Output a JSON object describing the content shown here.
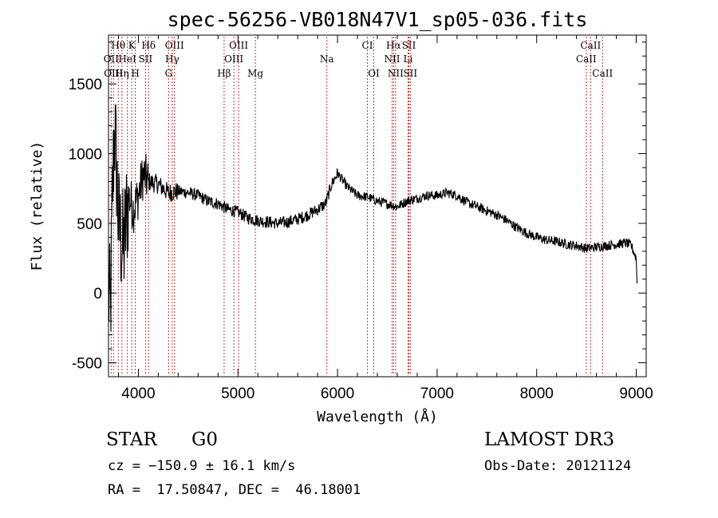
{
  "chart_data": {
    "type": "line",
    "title": "spec-56256-VB018N47V1_sp05-036.fits",
    "xlabel": "Wavelength (Å)",
    "ylabel": "Flux (relative)",
    "xlim": [
      3700,
      9100
    ],
    "ylim": [
      -600,
      1850
    ],
    "xticks": [
      4000,
      5000,
      6000,
      7000,
      8000,
      9000
    ],
    "yticks": [
      -500,
      0,
      500,
      1000,
      1500
    ],
    "spectral_lines": [
      {
        "label": "Hθ",
        "wavelength": 3798,
        "row": 0
      },
      {
        "label": "K",
        "wavelength": 3934,
        "row": 0
      },
      {
        "label": "Hδ",
        "wavelength": 4102,
        "row": 0
      },
      {
        "label": "OIII",
        "wavelength": 4363,
        "row": 0
      },
      {
        "label": "OIII",
        "wavelength": 5007,
        "row": 0
      },
      {
        "label": "CI",
        "wavelength": 6300,
        "row": 0
      },
      {
        "label": "Hα",
        "wavelength": 6563,
        "row": 0
      },
      {
        "label": "SII",
        "wavelength": 6717,
        "row": 0
      },
      {
        "label": "CaII",
        "wavelength": 8542,
        "row": 0
      },
      {
        "label": "OII",
        "wavelength": 3727,
        "row": 1
      },
      {
        "label": "HeI",
        "wavelength": 3889,
        "row": 1
      },
      {
        "label": "SII",
        "wavelength": 4072,
        "row": 1
      },
      {
        "label": "Hγ",
        "wavelength": 4340,
        "row": 1
      },
      {
        "label": "OIII",
        "wavelength": 4959,
        "row": 1
      },
      {
        "label": "Na",
        "wavelength": 5893,
        "row": 1
      },
      {
        "label": "NII",
        "wavelength": 6548,
        "row": 1
      },
      {
        "label": "Li",
        "wavelength": 6708,
        "row": 1
      },
      {
        "label": "CaII",
        "wavelength": 8498,
        "row": 1
      },
      {
        "label": "OIII",
        "wavelength": 3750,
        "row": 2
      },
      {
        "label": "Hη",
        "wavelength": 3835,
        "row": 2
      },
      {
        "label": "H",
        "wavelength": 3969,
        "row": 2
      },
      {
        "label": "G",
        "wavelength": 4304,
        "row": 2
      },
      {
        "label": "Hβ",
        "wavelength": 4861,
        "row": 2
      },
      {
        "label": "Mg",
        "wavelength": 5175,
        "row": 2
      },
      {
        "label": "OI",
        "wavelength": 6364,
        "row": 2
      },
      {
        "label": "NII",
        "wavelength": 6583,
        "row": 2
      },
      {
        "label": "SII",
        "wavelength": 6731,
        "row": 2
      },
      {
        "label": "CaII",
        "wavelength": 8662,
        "row": 2
      }
    ],
    "continuum": [
      [
        3700,
        0
      ],
      [
        3720,
        -150
      ],
      [
        3740,
        700
      ],
      [
        3760,
        1200
      ],
      [
        3780,
        900
      ],
      [
        3800,
        500
      ],
      [
        3850,
        300
      ],
      [
        3900,
        700
      ],
      [
        3950,
        600
      ],
      [
        4000,
        700
      ],
      [
        4050,
        850
      ],
      [
        4100,
        800
      ],
      [
        4200,
        780
      ],
      [
        4300,
        720
      ],
      [
        4400,
        730
      ],
      [
        4500,
        720
      ],
      [
        4600,
        700
      ],
      [
        4700,
        660
      ],
      [
        4800,
        640
      ],
      [
        4900,
        600
      ],
      [
        5000,
        580
      ],
      [
        5100,
        540
      ],
      [
        5200,
        520
      ],
      [
        5300,
        510
      ],
      [
        5400,
        500
      ],
      [
        5500,
        510
      ],
      [
        5600,
        530
      ],
      [
        5700,
        560
      ],
      [
        5800,
        600
      ],
      [
        5880,
        640
      ],
      [
        5940,
        780
      ],
      [
        6000,
        860
      ],
      [
        6100,
        760
      ],
      [
        6200,
        700
      ],
      [
        6300,
        690
      ],
      [
        6400,
        660
      ],
      [
        6500,
        640
      ],
      [
        6600,
        620
      ],
      [
        6700,
        660
      ],
      [
        6800,
        680
      ],
      [
        6900,
        700
      ],
      [
        7000,
        700
      ],
      [
        7100,
        720
      ],
      [
        7200,
        700
      ],
      [
        7300,
        650
      ],
      [
        7400,
        620
      ],
      [
        7500,
        590
      ],
      [
        7600,
        560
      ],
      [
        7700,
        520
      ],
      [
        7800,
        470
      ],
      [
        7900,
        430
      ],
      [
        8000,
        400
      ],
      [
        8100,
        380
      ],
      [
        8200,
        370
      ],
      [
        8300,
        350
      ],
      [
        8400,
        340
      ],
      [
        8500,
        320
      ],
      [
        8600,
        330
      ],
      [
        8700,
        340
      ],
      [
        8800,
        350
      ],
      [
        8900,
        360
      ],
      [
        8950,
        340
      ],
      [
        9000,
        250
      ],
      [
        9010,
        30
      ]
    ],
    "info": {
      "object_class": "STAR",
      "subclass": "G0",
      "survey": "LAMOST DR3",
      "redshift": "cz = −150.9 ± 16.1 km/s",
      "obs_date": "Obs-Date: 20121124",
      "coords": "RA =  17.50847, DEC =  46.18001"
    }
  }
}
